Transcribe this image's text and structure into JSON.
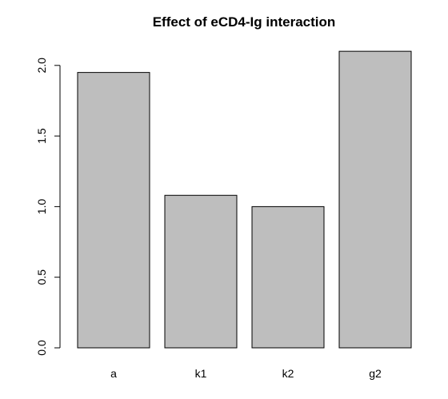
{
  "chart_data": {
    "type": "bar",
    "title": "Effect of eCD4-Ig interaction",
    "xlabel": "",
    "ylabel": "",
    "categories": [
      "a",
      "k1",
      "k2",
      "g2"
    ],
    "values": [
      1.95,
      1.08,
      1.0,
      2.1
    ],
    "ylim": [
      0,
      2.1
    ],
    "yticks": [
      0.0,
      0.5,
      1.0,
      1.5,
      2.0
    ],
    "ytick_labels": [
      "0.0",
      "0.5",
      "1.0",
      "1.5",
      "2.0"
    ],
    "bar_color": "#bebebe",
    "grid": false
  }
}
